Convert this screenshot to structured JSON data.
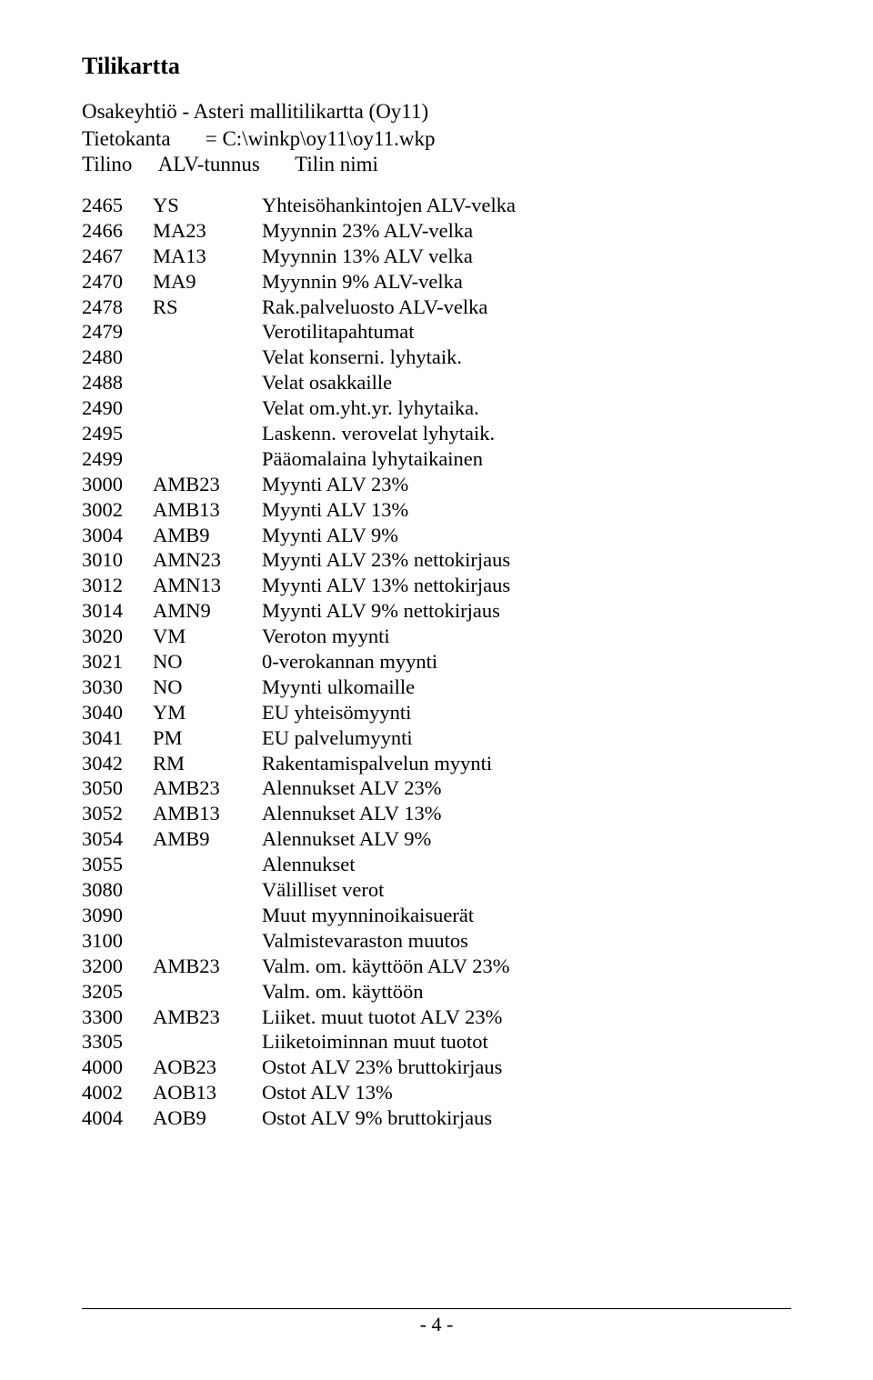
{
  "doc": {
    "title": "Tilikartta",
    "subtitle": "Osakeyhtiö - Asteri mallitilikartta (Oy11)",
    "meta_label": "Tietokanta",
    "meta_value": "= C:\\winkp\\oy11\\oy11.wkp",
    "col_tilino": "Tilino",
    "col_alv": "ALV-tunnus",
    "col_name": "Tilin nimi",
    "page_number": "- 4 -"
  },
  "rows": [
    {
      "tilino": "2465",
      "alv": "YS",
      "name": "Yhteisöhankintojen ALV-velka"
    },
    {
      "tilino": "2466",
      "alv": "MA23",
      "name": "Myynnin 23% ALV-velka"
    },
    {
      "tilino": "2467",
      "alv": "MA13",
      "name": "Myynnin 13% ALV velka"
    },
    {
      "tilino": "2470",
      "alv": "MA9",
      "name": "Myynnin 9% ALV-velka"
    },
    {
      "tilino": "2478",
      "alv": "RS",
      "name": "Rak.palveluosto ALV-velka"
    },
    {
      "tilino": "2479",
      "alv": "",
      "name": "Verotilitapahtumat"
    },
    {
      "tilino": "2480",
      "alv": "",
      "name": "Velat konserni. lyhytaik."
    },
    {
      "tilino": "2488",
      "alv": "",
      "name": "Velat osakkaille"
    },
    {
      "tilino": "2490",
      "alv": "",
      "name": "Velat om.yht.yr. lyhytaika."
    },
    {
      "tilino": "2495",
      "alv": "",
      "name": "Laskenn. verovelat lyhytaik."
    },
    {
      "tilino": "2499",
      "alv": "",
      "name": "Pääomalaina lyhytaikainen"
    },
    {
      "tilino": "3000",
      "alv": "AMB23",
      "name": "Myynti ALV 23%"
    },
    {
      "tilino": "3002",
      "alv": "AMB13",
      "name": "Myynti ALV 13%"
    },
    {
      "tilino": "3004",
      "alv": "AMB9",
      "name": "Myynti ALV 9%"
    },
    {
      "tilino": "3010",
      "alv": "AMN23",
      "name": "Myynti ALV 23% nettokirjaus"
    },
    {
      "tilino": "3012",
      "alv": "AMN13",
      "name": "Myynti ALV 13% nettokirjaus"
    },
    {
      "tilino": "3014",
      "alv": "AMN9",
      "name": "Myynti ALV 9% nettokirjaus"
    },
    {
      "tilino": "3020",
      "alv": "VM",
      "name": "Veroton myynti"
    },
    {
      "tilino": "3021",
      "alv": "NO",
      "name": "0-verokannan myynti"
    },
    {
      "tilino": "3030",
      "alv": "NO",
      "name": "Myynti ulkomaille"
    },
    {
      "tilino": "3040",
      "alv": "YM",
      "name": "EU yhteisömyynti"
    },
    {
      "tilino": "3041",
      "alv": "PM",
      "name": "EU palvelumyynti"
    },
    {
      "tilino": "3042",
      "alv": "RM",
      "name": "Rakentamispalvelun myynti"
    },
    {
      "tilino": "3050",
      "alv": "AMB23",
      "name": "Alennukset ALV 23%"
    },
    {
      "tilino": "3052",
      "alv": "AMB13",
      "name": "Alennukset ALV 13%"
    },
    {
      "tilino": "3054",
      "alv": "AMB9",
      "name": "Alennukset ALV 9%"
    },
    {
      "tilino": "3055",
      "alv": "",
      "name": "Alennukset"
    },
    {
      "tilino": "3080",
      "alv": "",
      "name": "Välilliset verot"
    },
    {
      "tilino": "3090",
      "alv": "",
      "name": "Muut myynninoikaisuerät"
    },
    {
      "tilino": "3100",
      "alv": "",
      "name": "Valmistevaraston muutos"
    },
    {
      "tilino": "3200",
      "alv": "AMB23",
      "name": "Valm. om. käyttöön ALV 23%"
    },
    {
      "tilino": "3205",
      "alv": "",
      "name": "Valm. om. käyttöön"
    },
    {
      "tilino": "3300",
      "alv": "AMB23",
      "name": "Liiket. muut tuotot ALV 23%"
    },
    {
      "tilino": "3305",
      "alv": "",
      "name": "Liiketoiminnan muut tuotot"
    },
    {
      "tilino": "4000",
      "alv": "AOB23",
      "name": "Ostot ALV 23% bruttokirjaus"
    },
    {
      "tilino": "4002",
      "alv": "AOB13",
      "name": "Ostot ALV 13%"
    },
    {
      "tilino": "4004",
      "alv": "AOB9",
      "name": "Ostot ALV 9% bruttokirjaus"
    }
  ]
}
